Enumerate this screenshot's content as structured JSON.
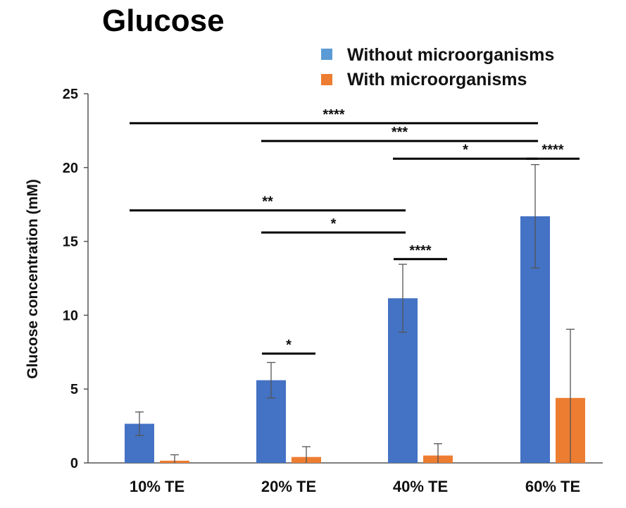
{
  "chart_data": {
    "type": "bar",
    "title": "Glucose",
    "xlabel": "",
    "ylabel": "Glucose concentration (mM)",
    "ylim": [
      0,
      25
    ],
    "yticks": [
      0,
      5,
      10,
      15,
      20,
      25
    ],
    "categories": [
      "10% TE",
      "20% TE",
      "40% TE",
      "60% TE"
    ],
    "series": [
      {
        "name": "Without microorganisms",
        "color": "#4472C4",
        "legend_color": "#5B9BD5",
        "values": [
          2.65,
          5.6,
          11.15,
          16.7
        ],
        "errors": [
          0.8,
          1.2,
          2.3,
          3.5
        ]
      },
      {
        "name": "With microorganisms",
        "color": "#ED7D31",
        "legend_color": "#ED7D31",
        "values": [
          0.15,
          0.4,
          0.5,
          4.4
        ],
        "errors": [
          0.4,
          0.7,
          0.8,
          4.65
        ]
      }
    ],
    "legend_position": "top-right",
    "grid": false,
    "significance": [
      {
        "label": "****",
        "from": "10% TE",
        "to": "60% TE",
        "y": 23.0
      },
      {
        "label": "***",
        "from": "20% TE",
        "to": "60% TE",
        "y": 21.8
      },
      {
        "label": "*",
        "from": "40% TE",
        "to": "60% TE",
        "y": 20.6
      },
      {
        "label": "****",
        "within": "60% TE",
        "y": 20.6
      },
      {
        "label": "**",
        "from": "10% TE",
        "to": "40% TE",
        "y": 17.1
      },
      {
        "label": "*",
        "from": "20% TE",
        "to": "40% TE",
        "y": 15.6
      },
      {
        "label": "****",
        "within": "40% TE",
        "y": 13.8
      },
      {
        "label": "*",
        "within": "20% TE",
        "y": 7.4
      }
    ]
  }
}
